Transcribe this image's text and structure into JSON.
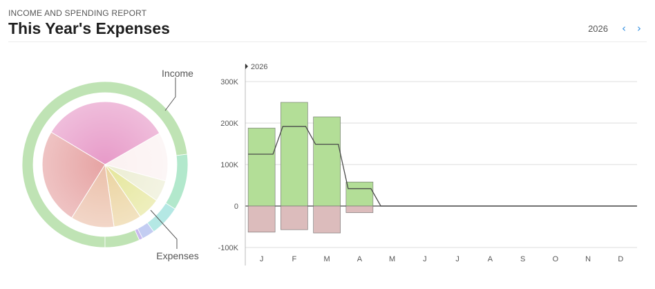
{
  "header": {
    "eyebrow": "INCOME AND SPENDING REPORT",
    "title": "This Year's Expenses",
    "year": "2026",
    "prev_icon": "chevron-left-icon",
    "next_icon": "chevron-right-icon"
  },
  "chart_data": [
    {
      "type": "pie",
      "labels": {
        "income": "Income",
        "expenses": "Expenses"
      },
      "income_ring": [
        {
          "value": 73,
          "color": "#bfe3b4"
        },
        {
          "value": 11,
          "color": "#b2e8cc"
        },
        {
          "value": 6,
          "color": "#b4e8e4"
        },
        {
          "value": 2.5,
          "color": "#c3cdf2"
        },
        {
          "value": 0.7,
          "color": "#c9b9ee"
        },
        {
          "value": 6.8,
          "color": "#bfe3b4"
        }
      ],
      "expense_slices": [
        {
          "value": 33.1,
          "color": "#e79ac8"
        },
        {
          "value": 12.5,
          "color": "#fbf1f1"
        },
        {
          "value": 5.5,
          "color": "#ecedd3"
        },
        {
          "value": 5.8,
          "color": "#e5e69a"
        },
        {
          "value": 7.2,
          "color": "#ebd39f"
        },
        {
          "value": 11.2,
          "color": "#ebc0aa"
        },
        {
          "value": 24.7,
          "color": "#e6a3a3"
        }
      ]
    },
    {
      "type": "bar",
      "legend": "2026",
      "categories": [
        "J",
        "F",
        "M",
        "A",
        "M",
        "J",
        "J",
        "A",
        "S",
        "O",
        "N",
        "D"
      ],
      "income": [
        188000,
        250000,
        215000,
        58000,
        0,
        0,
        0,
        0,
        0,
        0,
        0,
        0
      ],
      "expenses": [
        -63000,
        -57000,
        -65000,
        -16000,
        0,
        0,
        0,
        0,
        0,
        0,
        0,
        0
      ],
      "net": [
        125000,
        192000,
        149000,
        42000,
        0,
        0,
        0,
        0,
        0,
        0,
        0,
        0
      ],
      "ylim": [
        -100000,
        300000
      ],
      "yticks": [
        300000,
        200000,
        100000,
        0,
        -100000
      ],
      "ytick_labels": [
        "300K",
        "200K",
        "100K",
        "0",
        "-100K"
      ],
      "colors": {
        "income": "#b3de97",
        "expenses": "#dcbcbc",
        "grid": "#dcdcdc",
        "net": "#4a4a4a"
      }
    }
  ]
}
